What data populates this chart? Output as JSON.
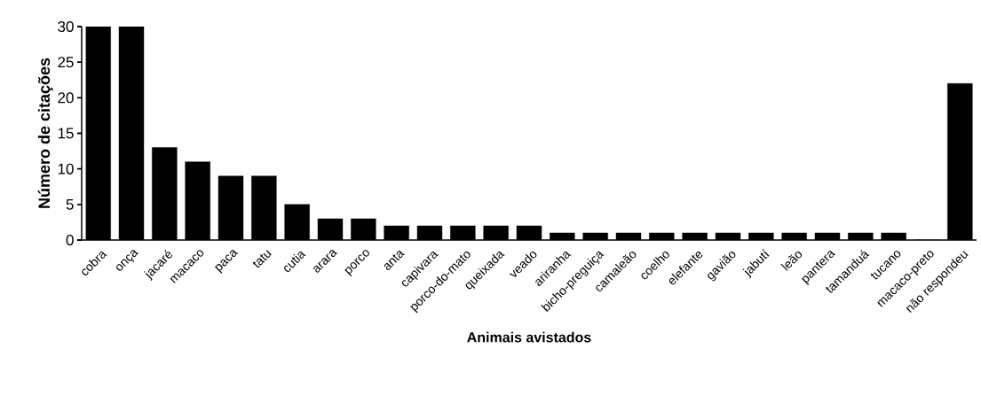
{
  "chart_data": {
    "type": "bar",
    "xlabel": "Animais avistados",
    "ylabel": "Número de citações",
    "categories": [
      "cobra",
      "onça",
      "jacaré",
      "macaco",
      "paca",
      "tatu",
      "cutia",
      "arara",
      "porco",
      "anta",
      "capivara",
      "porco-do-mato",
      "queixada",
      "veado",
      "ariranha",
      "bicho-preguiça",
      "camaleão",
      "coelho",
      "elefante",
      "gavião",
      "jabutí",
      "leão",
      "pantera",
      "tamanduá",
      "tucano",
      "macaco-preto",
      "não respondeu"
    ],
    "values": [
      30,
      30,
      13,
      11,
      9,
      9,
      5,
      3,
      3,
      2,
      2,
      2,
      2,
      2,
      1,
      1,
      1,
      1,
      1,
      1,
      1,
      1,
      1,
      1,
      1,
      0,
      22
    ],
    "color": "#000000",
    "ylim": [
      0,
      30
    ],
    "yticks": [
      0,
      5,
      10,
      15,
      20,
      25,
      30
    ]
  }
}
